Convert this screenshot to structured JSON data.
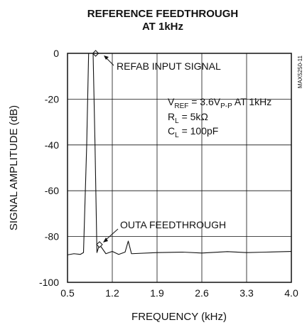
{
  "chart_data": {
    "type": "line",
    "title_line1": "REFERENCE FEEDTHROUGH",
    "title_line2": "AT 1kHz",
    "xlabel": "FREQUENCY (kHz)",
    "ylabel": "SIGNAL AMPLITUDE (dB)",
    "xlim": [
      0.5,
      4.0
    ],
    "ylim": [
      -100,
      0
    ],
    "x_ticks": [
      "0.5",
      "1.2",
      "1.9",
      "2.6",
      "3.3",
      "4.0"
    ],
    "y_ticks": [
      "0",
      "-20",
      "-40",
      "-60",
      "-80",
      "-100"
    ],
    "grid": true,
    "figure_id": "MAX5250-11",
    "annotations": {
      "refab": "REFAB INPUT SIGNAL",
      "outa": "OUTA FEEDTHROUGH",
      "vref": {
        "main": "V",
        "sub": "REF",
        "eq": " = 3.6V",
        "sub2": "P-P",
        "tail": " AT 1kHz"
      },
      "rl": {
        "main": "R",
        "sub": "L",
        "tail": " = 5kΩ"
      },
      "cl": {
        "main": "C",
        "sub": "L",
        "tail": " = 100pF"
      }
    },
    "series": [
      {
        "values": [
          [
            0.5,
            -88.0
          ],
          [
            0.6,
            -87.5
          ],
          [
            0.7,
            -87.8
          ],
          [
            0.75,
            -87.0
          ],
          [
            0.8,
            -40.0
          ],
          [
            0.83,
            0.0
          ],
          [
            0.9,
            0.0
          ],
          [
            0.93,
            -40.0
          ],
          [
            0.96,
            -87.0
          ],
          [
            1.0,
            -83.5
          ],
          [
            1.1,
            -87.5
          ],
          [
            1.2,
            -86.5
          ],
          [
            1.3,
            -87.8
          ],
          [
            1.4,
            -86.8
          ],
          [
            1.45,
            -82.0
          ],
          [
            1.5,
            -87.5
          ],
          [
            1.9,
            -87.0
          ],
          [
            2.3,
            -86.8
          ],
          [
            2.6,
            -87.2
          ],
          [
            3.0,
            -86.6
          ],
          [
            3.3,
            -87.0
          ],
          [
            3.6,
            -86.8
          ],
          [
            4.0,
            -86.5
          ]
        ]
      }
    ],
    "markers": [
      {
        "x": 0.94,
        "y": 0.0
      },
      {
        "x": 1.0,
        "y": -83.5
      }
    ]
  }
}
